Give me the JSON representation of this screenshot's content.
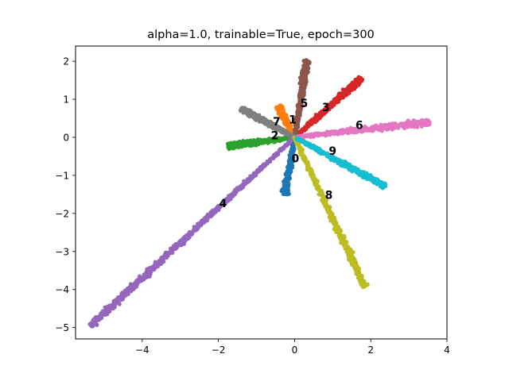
{
  "chart_data": {
    "type": "scatter",
    "title": "alpha=1.0, trainable=True, epoch=300",
    "xlabel": "",
    "ylabel": "",
    "xlim": [
      -5.75,
      4.0
    ],
    "ylim": [
      -5.3,
      2.4
    ],
    "xticks": [
      -4,
      -2,
      0,
      2,
      4
    ],
    "xtick_labels": [
      "−4",
      "−2",
      "0",
      "2",
      "4"
    ],
    "yticks": [
      -5,
      -4,
      -3,
      -2,
      -1,
      0,
      1,
      2
    ],
    "ytick_labels": [
      "−5",
      "−4",
      "−3",
      "−2",
      "−1",
      "0",
      "1",
      "2"
    ],
    "grid": false,
    "legend": "none",
    "series": [
      {
        "label": "0",
        "color": "#1f77b4",
        "end": [
          -0.25,
          -1.5
        ],
        "label_pos": [
          0.02,
          -0.57
        ]
      },
      {
        "label": "1",
        "color": "#ff7f0e",
        "end": [
          -0.42,
          0.82
        ],
        "label_pos": [
          -0.05,
          0.45
        ]
      },
      {
        "label": "2",
        "color": "#2ca02c",
        "end": [
          -1.75,
          -0.23
        ],
        "label_pos": [
          -0.52,
          0.03
        ]
      },
      {
        "label": "3",
        "color": "#d62728",
        "end": [
          1.75,
          1.55
        ],
        "label_pos": [
          0.82,
          0.77
        ]
      },
      {
        "label": "4",
        "color": "#9467bd",
        "end": [
          -5.35,
          -4.95
        ],
        "label_pos": [
          -1.88,
          -1.75
        ]
      },
      {
        "label": "5",
        "color": "#8c564b",
        "end": [
          0.33,
          2.05
        ],
        "label_pos": [
          0.25,
          0.88
        ]
      },
      {
        "label": "6",
        "color": "#e377c2",
        "end": [
          3.55,
          0.4
        ],
        "label_pos": [
          1.7,
          0.3
        ]
      },
      {
        "label": "7",
        "color": "#7f7f7f",
        "end": [
          -1.4,
          0.75
        ],
        "label_pos": [
          -0.47,
          0.4
        ]
      },
      {
        "label": "8",
        "color": "#bcbd22",
        "end": [
          1.85,
          -3.95
        ],
        "label_pos": [
          0.9,
          -1.53
        ]
      },
      {
        "label": "9",
        "color": "#17becf",
        "end": [
          2.4,
          -1.3
        ],
        "label_pos": [
          1.0,
          -0.38
        ]
      }
    ]
  }
}
